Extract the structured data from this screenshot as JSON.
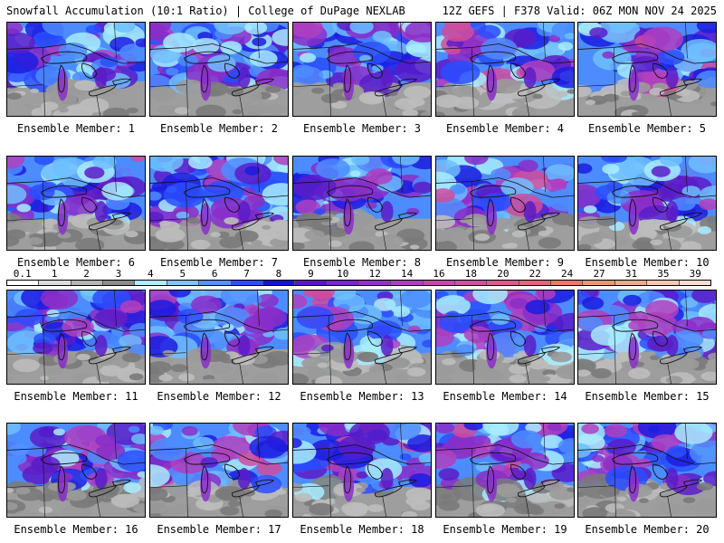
{
  "header": {
    "title": "Snowfall Accumulation (10:1 Ratio) | College of DuPage NEXLAB",
    "run_info": "12Z GEFS | F378 Valid: 06Z MON NOV 24 2025"
  },
  "members": [
    {
      "label": "Ensemble Member: 1",
      "intensity": 0.45
    },
    {
      "label": "Ensemble Member: 2",
      "intensity": 0.55
    },
    {
      "label": "Ensemble Member: 3",
      "intensity": 0.5
    },
    {
      "label": "Ensemble Member: 4",
      "intensity": 0.75
    },
    {
      "label": "Ensemble Member: 5",
      "intensity": 0.7
    },
    {
      "label": "Ensemble Member: 6",
      "intensity": 0.65
    },
    {
      "label": "Ensemble Member: 7",
      "intensity": 0.55
    },
    {
      "label": "Ensemble Member: 8",
      "intensity": 0.6
    },
    {
      "label": "Ensemble Member: 9",
      "intensity": 0.7
    },
    {
      "label": "Ensemble Member: 10",
      "intensity": 0.75
    },
    {
      "label": "Ensemble Member: 11",
      "intensity": 0.55
    },
    {
      "label": "Ensemble Member: 12",
      "intensity": 0.45
    },
    {
      "label": "Ensemble Member: 13",
      "intensity": 0.7
    },
    {
      "label": "Ensemble Member: 14",
      "intensity": 0.65
    },
    {
      "label": "Ensemble Member: 15",
      "intensity": 0.55
    },
    {
      "label": "Ensemble Member: 16",
      "intensity": 0.6
    },
    {
      "label": "Ensemble Member: 17",
      "intensity": 0.7
    },
    {
      "label": "Ensemble Member: 18",
      "intensity": 0.65
    },
    {
      "label": "Ensemble Member: 19",
      "intensity": 0.7
    },
    {
      "label": "Ensemble Member: 20",
      "intensity": 0.6
    }
  ],
  "colorbar": {
    "ticks": [
      "0.1",
      "1",
      "2",
      "3",
      "4",
      "5",
      "6",
      "7",
      "8",
      "9",
      "10",
      "12",
      "14",
      "16",
      "18",
      "20",
      "22",
      "24",
      "27",
      "31",
      "35",
      "39"
    ],
    "colors": [
      "#ffffff",
      "#dcdcdc",
      "#b4b4b4",
      "#8c8c8c",
      "#aaf0ff",
      "#78c8ff",
      "#5096ff",
      "#2850ff",
      "#1414d2",
      "#5a14c8",
      "#7828c8",
      "#9632c8",
      "#b43cc8",
      "#c846b4",
      "#d250a0",
      "#dc5a8c",
      "#e66478",
      "#f07864",
      "#f0966e",
      "#f0aa8c",
      "#f5c8b4",
      "#fadcd2"
    ]
  }
}
